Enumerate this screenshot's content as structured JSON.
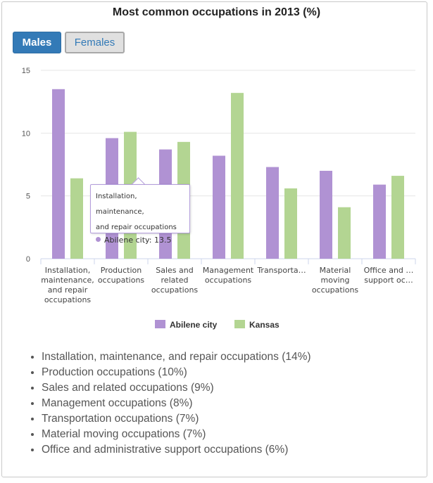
{
  "title": "Most common occupations in 2013 (%)",
  "tabs": {
    "males": "Males",
    "females": "Females"
  },
  "colors": {
    "abilene": "#b092d3",
    "kansas": "#b3d592",
    "accent": "#337ab7"
  },
  "chart_data": {
    "type": "bar",
    "title": "Most common occupations in 2013 (%)",
    "categories": [
      [
        "Installation,",
        "maintenance,",
        "and repair",
        "occupations"
      ],
      [
        "Production",
        "occupations"
      ],
      [
        "Sales and",
        "related",
        "occupations"
      ],
      [
        "Management",
        "occupations"
      ],
      [
        "Transporta…"
      ],
      [
        "Material",
        "moving",
        "occupations"
      ],
      [
        "Office and …",
        "support oc…"
      ]
    ],
    "series": [
      {
        "name": "Abilene city",
        "color": "#b092d3",
        "values": [
          13.5,
          9.6,
          8.7,
          8.2,
          7.3,
          7.0,
          5.9
        ]
      },
      {
        "name": "Kansas",
        "color": "#b3d592",
        "values": [
          6.4,
          10.1,
          9.3,
          13.2,
          5.6,
          4.1,
          6.6
        ]
      }
    ],
    "ylim": [
      0,
      15
    ],
    "yticks": [
      0,
      5,
      10,
      15
    ],
    "xlabel": "",
    "ylabel": "",
    "legend": "bottom-center",
    "grid": true
  },
  "tooltip": {
    "title": "Installation, maintenance, and repair occupations",
    "title_lines": [
      "Installation, maintenance,",
      "and repair occupations"
    ],
    "series": "Abilene city",
    "value": "13.5"
  },
  "occupations": [
    "Installation, maintenance, and repair occupations (14%)",
    "Production occupations (10%)",
    "Sales and related occupations (9%)",
    "Management occupations (8%)",
    "Transportation occupations (7%)",
    "Material moving occupations (7%)",
    "Office and administrative support occupations (6%)"
  ]
}
